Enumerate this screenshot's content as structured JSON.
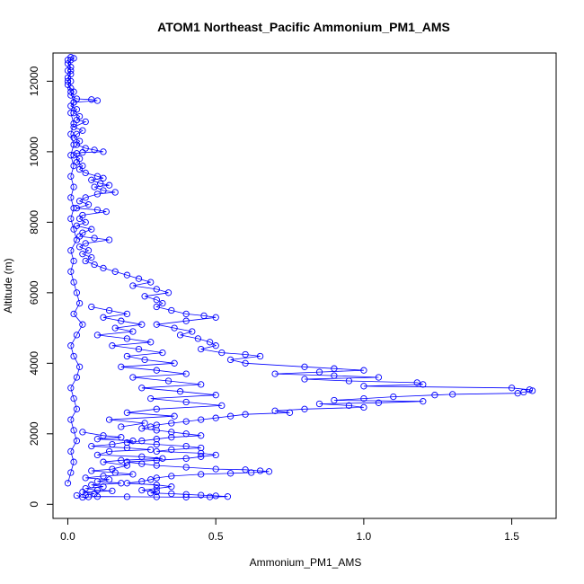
{
  "chart_data": {
    "type": "line",
    "title": "ATOM1 Northeast_Pacific Ammonium_PM1_AMS",
    "xlabel": "Ammonium_PM1_AMS",
    "ylabel": "Altitude (m)",
    "xlim": [
      -0.05,
      1.65
    ],
    "ylim": [
      -400,
      12800
    ],
    "xticks": [
      0.0,
      0.5,
      1.0,
      1.5
    ],
    "xtick_labels": [
      "0.0",
      "0.5",
      "1.0",
      "1.5"
    ],
    "yticks": [
      0,
      2000,
      4000,
      6000,
      8000,
      10000,
      12000
    ],
    "ytick_labels": [
      "0",
      "2000",
      "4000",
      "6000",
      "8000",
      "10000",
      "12000"
    ],
    "series_color": "#0000ff",
    "marker": "open-circle",
    "grid": false,
    "series": [
      {
        "points": [
          [
            0.01,
            12680
          ],
          [
            0.02,
            12650
          ],
          [
            0.01,
            12600
          ],
          [
            0.0,
            12500
          ],
          [
            0.01,
            12400
          ],
          [
            0.0,
            12300
          ],
          [
            0.01,
            12200
          ],
          [
            0.0,
            12100
          ],
          [
            0.01,
            12000
          ],
          [
            0.0,
            11900
          ],
          [
            0.01,
            11800
          ],
          [
            0.02,
            11700
          ],
          [
            0.01,
            11600
          ],
          [
            0.03,
            11500
          ],
          [
            0.08,
            11480
          ],
          [
            0.1,
            11450
          ],
          [
            0.02,
            11400
          ],
          [
            0.01,
            11300
          ],
          [
            0.03,
            11200
          ],
          [
            0.02,
            11100
          ],
          [
            0.04,
            11000
          ],
          [
            0.03,
            10900
          ],
          [
            0.06,
            10850
          ],
          [
            0.02,
            10700
          ],
          [
            0.05,
            10600
          ],
          [
            0.03,
            10500
          ],
          [
            0.02,
            10400
          ],
          [
            0.04,
            10300
          ],
          [
            0.03,
            10200
          ],
          [
            0.06,
            10100
          ],
          [
            0.09,
            10050
          ],
          [
            0.12,
            10000
          ],
          [
            0.05,
            9980
          ],
          [
            0.03,
            9950
          ],
          [
            0.02,
            9900
          ],
          [
            0.04,
            9800
          ],
          [
            0.03,
            9700
          ],
          [
            0.05,
            9600
          ],
          [
            0.04,
            9500
          ],
          [
            0.06,
            9400
          ],
          [
            0.1,
            9300
          ],
          [
            0.12,
            9250
          ],
          [
            0.08,
            9200
          ],
          [
            0.11,
            9100
          ],
          [
            0.14,
            9050
          ],
          [
            0.09,
            9000
          ],
          [
            0.12,
            8900
          ],
          [
            0.16,
            8850
          ],
          [
            0.1,
            8800
          ],
          [
            0.06,
            8700
          ],
          [
            0.04,
            8600
          ],
          [
            0.07,
            8500
          ],
          [
            0.03,
            8400
          ],
          [
            0.1,
            8350
          ],
          [
            0.13,
            8300
          ],
          [
            0.05,
            8200
          ],
          [
            0.04,
            8100
          ],
          [
            0.06,
            8000
          ],
          [
            0.03,
            7900
          ],
          [
            0.08,
            7800
          ],
          [
            0.05,
            7700
          ],
          [
            0.04,
            7600
          ],
          [
            0.09,
            7550
          ],
          [
            0.14,
            7500
          ],
          [
            0.06,
            7400
          ],
          [
            0.04,
            7300
          ],
          [
            0.07,
            7200
          ],
          [
            0.05,
            7100
          ],
          [
            0.08,
            7000
          ],
          [
            0.06,
            6900
          ],
          [
            0.09,
            6800
          ],
          [
            0.12,
            6700
          ],
          [
            0.16,
            6600
          ],
          [
            0.2,
            6500
          ],
          [
            0.24,
            6400
          ],
          [
            0.28,
            6300
          ],
          [
            0.22,
            6200
          ],
          [
            0.3,
            6100
          ],
          [
            0.34,
            6000
          ],
          [
            0.26,
            5900
          ],
          [
            0.3,
            5800
          ],
          [
            0.32,
            5700
          ],
          [
            0.3,
            5600
          ],
          [
            0.35,
            5500
          ],
          [
            0.4,
            5400
          ],
          [
            0.46,
            5350
          ],
          [
            0.5,
            5300
          ],
          [
            0.4,
            5200
          ],
          [
            0.3,
            5100
          ],
          [
            0.36,
            5000
          ],
          [
            0.42,
            4900
          ],
          [
            0.38,
            4800
          ],
          [
            0.44,
            4700
          ],
          [
            0.48,
            4600
          ],
          [
            0.5,
            4500
          ],
          [
            0.45,
            4400
          ],
          [
            0.52,
            4300
          ],
          [
            0.6,
            4250
          ],
          [
            0.65,
            4200
          ],
          [
            0.55,
            4100
          ],
          [
            0.6,
            4000
          ],
          [
            0.8,
            3900
          ],
          [
            0.9,
            3850
          ],
          [
            1.0,
            3800
          ],
          [
            0.85,
            3750
          ],
          [
            0.7,
            3700
          ],
          [
            0.9,
            3650
          ],
          [
            1.05,
            3600
          ],
          [
            0.8,
            3550
          ],
          [
            0.95,
            3500
          ],
          [
            1.18,
            3450
          ],
          [
            1.2,
            3400
          ],
          [
            1.0,
            3350
          ],
          [
            1.5,
            3300
          ],
          [
            1.56,
            3250
          ],
          [
            1.57,
            3220
          ],
          [
            1.54,
            3180
          ],
          [
            1.52,
            3150
          ],
          [
            1.3,
            3120
          ],
          [
            1.24,
            3100
          ],
          [
            1.1,
            3050
          ],
          [
            1.0,
            3000
          ],
          [
            0.9,
            2950
          ],
          [
            1.2,
            2920
          ],
          [
            1.05,
            2880
          ],
          [
            0.85,
            2850
          ],
          [
            0.95,
            2800
          ],
          [
            1.0,
            2750
          ],
          [
            0.8,
            2700
          ],
          [
            0.7,
            2650
          ],
          [
            0.75,
            2600
          ],
          [
            0.6,
            2550
          ],
          [
            0.55,
            2500
          ],
          [
            0.5,
            2450
          ],
          [
            0.45,
            2400
          ],
          [
            0.4,
            2350
          ],
          [
            0.35,
            2300
          ],
          [
            0.3,
            2250
          ],
          [
            0.28,
            2200
          ],
          [
            0.25,
            2150
          ],
          [
            0.3,
            2100
          ],
          [
            0.35,
            2050
          ],
          [
            0.4,
            2000
          ],
          [
            0.45,
            1950
          ],
          [
            0.35,
            1900
          ],
          [
            0.3,
            1850
          ],
          [
            0.25,
            1800
          ],
          [
            0.2,
            1750
          ],
          [
            0.3,
            1700
          ],
          [
            0.4,
            1650
          ],
          [
            0.45,
            1600
          ],
          [
            0.35,
            1550
          ],
          [
            0.3,
            1500
          ],
          [
            0.45,
            1450
          ],
          [
            0.5,
            1400
          ],
          [
            0.45,
            1350
          ],
          [
            0.4,
            1300
          ],
          [
            0.3,
            1250
          ],
          [
            0.2,
            1200
          ],
          [
            0.25,
            1150
          ],
          [
            0.3,
            1100
          ],
          [
            0.4,
            1050
          ],
          [
            0.5,
            1000
          ],
          [
            0.6,
            980
          ],
          [
            0.65,
            950
          ],
          [
            0.68,
            930
          ],
          [
            0.62,
            900
          ],
          [
            0.55,
            880
          ],
          [
            0.45,
            850
          ],
          [
            0.35,
            800
          ],
          [
            0.3,
            750
          ],
          [
            0.28,
            700
          ],
          [
            0.25,
            650
          ],
          [
            0.2,
            600
          ],
          [
            0.3,
            550
          ],
          [
            0.35,
            500
          ],
          [
            0.3,
            450
          ],
          [
            0.25,
            400
          ],
          [
            0.3,
            350
          ],
          [
            0.28,
            320
          ],
          [
            0.35,
            300
          ],
          [
            0.4,
            280
          ],
          [
            0.45,
            260
          ],
          [
            0.5,
            240
          ],
          [
            0.54,
            220
          ],
          [
            0.48,
            210
          ],
          [
            0.4,
            205
          ],
          [
            0.3,
            210
          ],
          [
            0.2,
            215
          ],
          [
            0.1,
            220
          ],
          [
            0.07,
            210
          ],
          [
            0.05,
            200
          ],
          [
            0.03,
            250
          ]
        ]
      },
      {
        "points": [
          [
            0.0,
            600
          ],
          [
            0.01,
            900
          ],
          [
            0.02,
            1200
          ],
          [
            0.01,
            1500
          ],
          [
            0.03,
            1800
          ],
          [
            0.02,
            2100
          ],
          [
            0.01,
            2400
          ],
          [
            0.03,
            2700
          ],
          [
            0.02,
            3000
          ],
          [
            0.01,
            3300
          ],
          [
            0.03,
            3600
          ],
          [
            0.04,
            3900
          ],
          [
            0.02,
            4200
          ],
          [
            0.01,
            4500
          ],
          [
            0.03,
            4800
          ],
          [
            0.05,
            5100
          ],
          [
            0.02,
            5400
          ],
          [
            0.04,
            5700
          ],
          [
            0.03,
            6000
          ],
          [
            0.02,
            6300
          ],
          [
            0.01,
            6600
          ],
          [
            0.02,
            6900
          ],
          [
            0.01,
            7200
          ],
          [
            0.03,
            7500
          ],
          [
            0.02,
            7800
          ],
          [
            0.01,
            8100
          ],
          [
            0.02,
            8400
          ],
          [
            0.01,
            8700
          ],
          [
            0.02,
            9000
          ],
          [
            0.01,
            9300
          ],
          [
            0.02,
            9600
          ],
          [
            0.01,
            9900
          ],
          [
            0.02,
            10200
          ],
          [
            0.01,
            10500
          ],
          [
            0.02,
            10800
          ],
          [
            0.01,
            11100
          ],
          [
            0.02,
            11400
          ],
          [
            0.01,
            11700
          ],
          [
            0.0,
            12000
          ],
          [
            0.01,
            12300
          ],
          [
            0.0,
            12600
          ]
        ]
      },
      {
        "points": [
          [
            0.05,
            2050
          ],
          [
            0.12,
            1950
          ],
          [
            0.18,
            1900
          ],
          [
            0.1,
            1850
          ],
          [
            0.22,
            1800
          ],
          [
            0.15,
            1700
          ],
          [
            0.08,
            1650
          ],
          [
            0.2,
            1600
          ],
          [
            0.28,
            1550
          ],
          [
            0.14,
            1500
          ],
          [
            0.1,
            1400
          ],
          [
            0.25,
            1350
          ],
          [
            0.32,
            1300
          ],
          [
            0.18,
            1250
          ],
          [
            0.12,
            1200
          ],
          [
            0.2,
            1100
          ],
          [
            0.15,
            1000
          ],
          [
            0.08,
            950
          ],
          [
            0.16,
            900
          ],
          [
            0.22,
            850
          ],
          [
            0.12,
            800
          ],
          [
            0.06,
            750
          ],
          [
            0.14,
            700
          ],
          [
            0.1,
            650
          ],
          [
            0.18,
            600
          ],
          [
            0.08,
            550
          ],
          [
            0.12,
            500
          ],
          [
            0.06,
            450
          ],
          [
            0.1,
            400
          ],
          [
            0.15,
            380
          ],
          [
            0.05,
            350
          ],
          [
            0.09,
            300
          ],
          [
            0.06,
            260
          ]
        ]
      },
      {
        "points": [
          [
            0.08,
            5600
          ],
          [
            0.14,
            5500
          ],
          [
            0.2,
            5400
          ],
          [
            0.12,
            5300
          ],
          [
            0.18,
            5200
          ],
          [
            0.25,
            5100
          ],
          [
            0.16,
            5000
          ],
          [
            0.22,
            4900
          ],
          [
            0.1,
            4800
          ],
          [
            0.2,
            4700
          ],
          [
            0.28,
            4600
          ],
          [
            0.15,
            4500
          ],
          [
            0.24,
            4400
          ],
          [
            0.32,
            4300
          ],
          [
            0.2,
            4200
          ],
          [
            0.26,
            4100
          ],
          [
            0.36,
            4000
          ],
          [
            0.18,
            3900
          ],
          [
            0.3,
            3800
          ],
          [
            0.4,
            3700
          ],
          [
            0.22,
            3600
          ],
          [
            0.34,
            3500
          ],
          [
            0.45,
            3400
          ],
          [
            0.25,
            3300
          ],
          [
            0.38,
            3200
          ],
          [
            0.5,
            3100
          ],
          [
            0.28,
            3000
          ],
          [
            0.4,
            2900
          ],
          [
            0.52,
            2800
          ],
          [
            0.3,
            2700
          ],
          [
            0.2,
            2600
          ],
          [
            0.36,
            2500
          ],
          [
            0.14,
            2400
          ],
          [
            0.26,
            2300
          ],
          [
            0.18,
            2200
          ]
        ]
      }
    ]
  }
}
